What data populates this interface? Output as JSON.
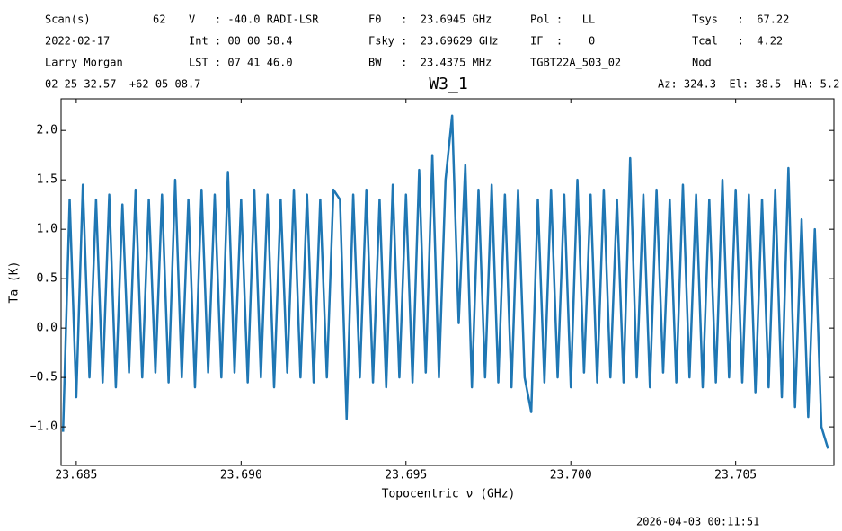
{
  "header": {
    "rows": [
      [
        "Scan(s)",
        "62",
        "V   : -40.0 RADI-LSR",
        "F0   :  23.6945 GHz",
        "Pol :   LL",
        "Tsys   :  67.22"
      ],
      [
        "2022-02-17",
        "Int : 00 00 58.4",
        "Fsky :  23.69629 GHz",
        "IF  :    0",
        "Tcal   :  4.22"
      ],
      [
        "Larry Morgan",
        "LST : 07 41 46.0",
        "BW   :  23.4375 MHz",
        "TGBT22A_503_02",
        "Nod"
      ],
      [
        "02 25 32.57  +62 05 08.7",
        "Az: 324.3  El: 38.5  HA: 5.2"
      ]
    ]
  },
  "footer": "2026-04-03 00:11:51",
  "chart_data": {
    "type": "line",
    "title": "W3_1",
    "xlabel": "Topocentric ν (GHz)",
    "ylabel": "Ta (K)",
    "color": "#1f77b4",
    "xlim": [
      23.68454,
      23.70798
    ],
    "ylim": [
      -1.39,
      2.32
    ],
    "xticks": [
      23.685,
      {
        "value": 23.69,
        "label": "23.690"
      },
      23.695,
      {
        "value": 23.7,
        "label": "23.700"
      },
      23.705
    ],
    "yticks": [
      {
        "value": -1,
        "label": "−1.0"
      },
      {
        "value": -0.5,
        "label": "−0.5"
      },
      {
        "value": 0,
        "label": "0.0"
      },
      {
        "value": 0.5,
        "label": "0.5"
      },
      {
        "value": 1,
        "label": "1.0"
      },
      {
        "value": 1.5,
        "label": "1.5"
      },
      {
        "value": 2,
        "label": "2.0"
      }
    ],
    "x": [
      23.6846,
      23.6848,
      23.685,
      23.6852,
      23.6854,
      23.6856,
      23.6858,
      23.686,
      23.6862,
      23.6864,
      23.6866,
      23.6868,
      23.687,
      23.6872,
      23.6874,
      23.6876,
      23.6878,
      23.688,
      23.6882,
      23.6884,
      23.6886,
      23.6888,
      23.689,
      23.6892,
      23.6894,
      23.6896,
      23.6898,
      23.69,
      23.6902,
      23.6904,
      23.6906,
      23.6908,
      23.691,
      23.6912,
      23.6914,
      23.6916,
      23.6918,
      23.692,
      23.6922,
      23.6924,
      23.6926,
      23.6928,
      23.693,
      23.6932,
      23.6934,
      23.6936,
      23.6938,
      23.694,
      23.6942,
      23.6944,
      23.6946,
      23.6948,
      23.695,
      23.6952,
      23.6954,
      23.6956,
      23.6958,
      23.696,
      23.6962,
      23.6964,
      23.6966,
      23.6968,
      23.697,
      23.6972,
      23.6974,
      23.6976,
      23.6978,
      23.698,
      23.6982,
      23.6984,
      23.6986,
      23.6988,
      23.699,
      23.6992,
      23.6994,
      23.6996,
      23.6998,
      23.7,
      23.7002,
      23.7004,
      23.7006,
      23.7008,
      23.701,
      23.7012,
      23.7014,
      23.7016,
      23.7018,
      23.702,
      23.7022,
      23.7024,
      23.7026,
      23.7028,
      23.703,
      23.7032,
      23.7034,
      23.7036,
      23.7038,
      23.704,
      23.7042,
      23.7044,
      23.7046,
      23.7048,
      23.705,
      23.7052,
      23.7054,
      23.7056,
      23.7058,
      23.706,
      23.7062,
      23.7064,
      23.7066,
      23.7068,
      23.707,
      23.7072,
      23.7074,
      23.7076,
      23.7078
    ],
    "values": [
      -1.05,
      1.3,
      -0.7,
      1.45,
      -0.5,
      1.3,
      -0.55,
      1.35,
      -0.6,
      1.25,
      -0.45,
      1.4,
      -0.5,
      1.3,
      -0.45,
      1.35,
      -0.55,
      1.5,
      -0.5,
      1.3,
      -0.6,
      1.4,
      -0.45,
      1.35,
      -0.5,
      1.58,
      -0.45,
      1.3,
      -0.55,
      1.4,
      -0.5,
      1.35,
      -0.6,
      1.3,
      -0.45,
      1.4,
      -0.5,
      1.35,
      -0.55,
      1.3,
      -0.5,
      1.4,
      1.3,
      -0.92,
      1.35,
      -0.5,
      1.4,
      -0.55,
      1.3,
      -0.6,
      1.45,
      -0.5,
      1.35,
      -0.55,
      1.6,
      -0.45,
      1.75,
      -0.5,
      1.5,
      2.15,
      0.05,
      1.65,
      -0.6,
      1.4,
      -0.5,
      1.45,
      -0.55,
      1.35,
      -0.6,
      1.4,
      -0.5,
      -0.85,
      1.3,
      -0.55,
      1.4,
      -0.5,
      1.35,
      -0.6,
      1.5,
      -0.45,
      1.35,
      -0.55,
      1.4,
      -0.5,
      1.3,
      -0.55,
      1.72,
      -0.5,
      1.35,
      -0.6,
      1.4,
      -0.45,
      1.3,
      -0.55,
      1.45,
      -0.5,
      1.35,
      -0.6,
      1.3,
      -0.55,
      1.5,
      -0.5,
      1.4,
      -0.55,
      1.35,
      -0.65,
      1.3,
      -0.6,
      1.4,
      -0.7,
      1.62,
      -0.8,
      1.1,
      -0.9,
      1.0,
      -1.0,
      -1.22
    ]
  }
}
